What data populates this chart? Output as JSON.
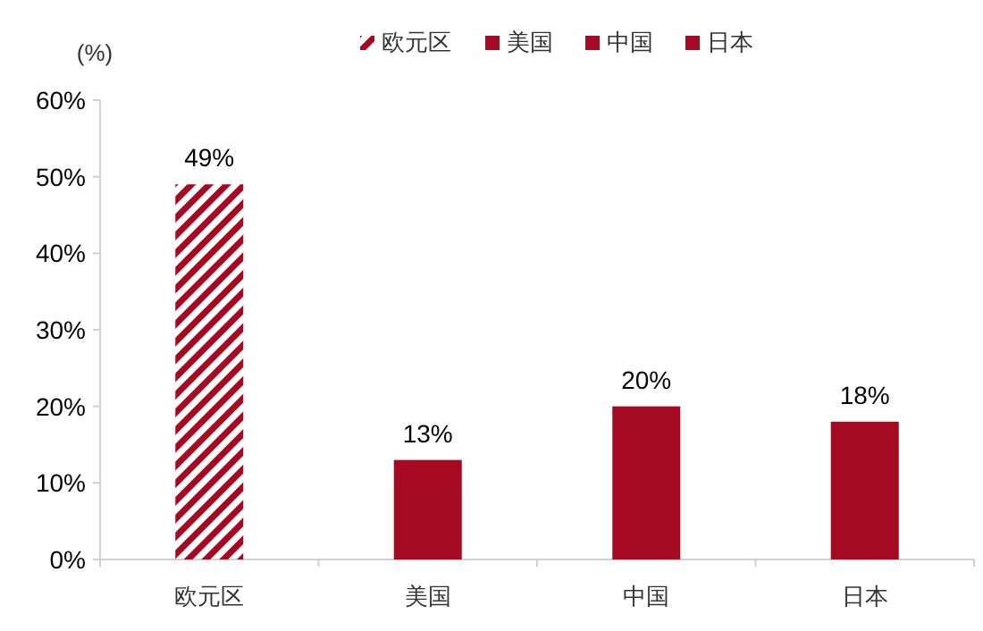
{
  "chart_data": {
    "type": "bar",
    "stacked": true,
    "ylabel": "(%)",
    "legend": "top",
    "categories": [
      "欧元区",
      "美国",
      "中国",
      "日本"
    ],
    "series": [
      {
        "name": "欧元区",
        "color": "#a50a22",
        "values": [
          49,
          null,
          null,
          null
        ],
        "value_labels": [
          "49%",
          null,
          null,
          null
        ]
      },
      {
        "name": "美国",
        "color": "#a50a22",
        "values": [
          null,
          13,
          null,
          null
        ],
        "value_labels": [
          null,
          "13%",
          null,
          null
        ]
      },
      {
        "name": "中国",
        "color": "#a50a22",
        "values": [
          null,
          null,
          20,
          null
        ],
        "value_labels": [
          null,
          null,
          "20%",
          null
        ]
      },
      {
        "name": "日本",
        "color": "#a50a22",
        "values": [
          null,
          null,
          null,
          18
        ],
        "value_labels": [
          null,
          null,
          null,
          "18%"
        ]
      }
    ],
    "ylim": [
      0,
      60
    ],
    "yticks": [
      {
        "value": 0,
        "label": "0%"
      },
      {
        "value": 10,
        "label": "10%"
      },
      {
        "value": 20,
        "label": "20%"
      },
      {
        "value": 30,
        "label": "30%"
      },
      {
        "value": 40,
        "label": "40%"
      },
      {
        "value": 50,
        "label": "50%"
      },
      {
        "value": 60,
        "label": "60%"
      }
    ]
  }
}
